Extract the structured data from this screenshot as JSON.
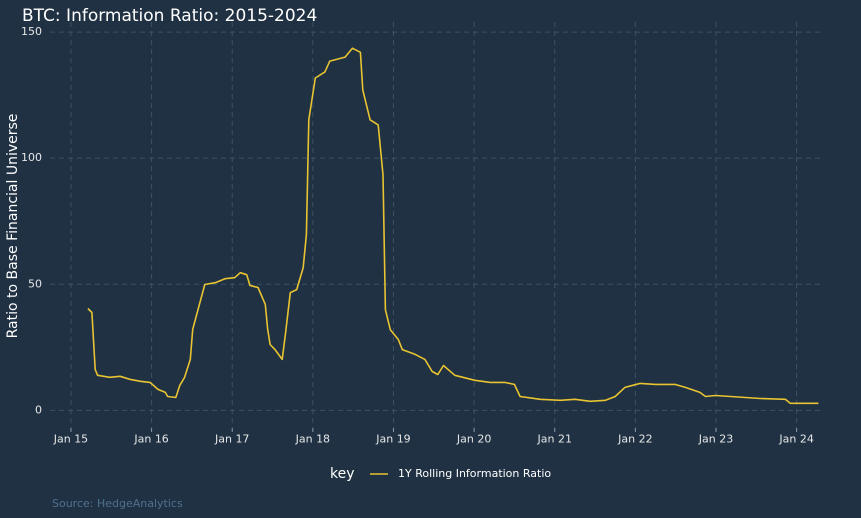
{
  "chart_data": {
    "type": "line",
    "title": "BTC: Information Ratio: 2015-2024",
    "y_label": "Ratio to Base Financial Universe",
    "legend_title": "key",
    "source": "Source: HedgeAnalytics",
    "grid": true,
    "legend": "bottom",
    "xlim": [
      2014.74,
      2024.29
    ],
    "ylim": [
      -7,
      154
    ],
    "xticks": [
      {
        "value": 2015,
        "label": "Jan 15"
      },
      {
        "value": 2016,
        "label": "Jan 16"
      },
      {
        "value": 2017,
        "label": "Jan 17"
      },
      {
        "value": 2018,
        "label": "Jan 18"
      },
      {
        "value": 2019,
        "label": "Jan 19"
      },
      {
        "value": 2020,
        "label": "Jan 20"
      },
      {
        "value": 2021,
        "label": "Jan 21"
      },
      {
        "value": 2022,
        "label": "Jan 22"
      },
      {
        "value": 2023,
        "label": "Jan 23"
      },
      {
        "value": 2024,
        "label": "Jan 24"
      }
    ],
    "yticks": [
      0,
      50,
      100,
      150
    ],
    "x": [
      2015.21,
      2015.26,
      2015.3,
      2015.33,
      2015.48,
      2015.61,
      2015.73,
      2015.86,
      2015.98,
      2016.08,
      2016.17,
      2016.2,
      2016.3,
      2016.35,
      2016.41,
      2016.48,
      2016.51,
      2016.56,
      2016.66,
      2016.79,
      2016.91,
      2017.03,
      2017.1,
      2017.18,
      2017.22,
      2017.32,
      2017.41,
      2017.44,
      2017.47,
      2017.53,
      2017.62,
      2017.66,
      2017.72,
      2017.8,
      2017.88,
      2017.92,
      2017.95,
      2018.03,
      2018.15,
      2018.21,
      2018.4,
      2018.49,
      2018.59,
      2018.62,
      2018.71,
      2018.81,
      2018.87,
      2018.9,
      2018.96,
      2019.06,
      2019.11,
      2019.27,
      2019.39,
      2019.48,
      2019.55,
      2019.62,
      2019.76,
      2020.01,
      2020.2,
      2020.38,
      2020.5,
      2020.57,
      2020.82,
      2021.07,
      2021.25,
      2021.44,
      2021.63,
      2021.75,
      2021.87,
      2022.06,
      2022.25,
      2022.49,
      2022.62,
      2022.8,
      2022.87,
      2022.99,
      2023.18,
      2023.55,
      2023.86,
      2023.92,
      2024.27
    ],
    "series": [
      {
        "name": "1Y Rolling Information Ratio",
        "color": "#e8c332",
        "values": [
          40.4,
          38.8,
          16.2,
          13.9,
          13.1,
          13.5,
          12.3,
          11.5,
          11.1,
          8.3,
          7.1,
          5.5,
          5.1,
          9.9,
          13.1,
          20.2,
          32.1,
          38.0,
          49.9,
          50.6,
          52.2,
          52.6,
          54.6,
          53.8,
          49.5,
          48.7,
          42.0,
          32.1,
          26.1,
          24.1,
          20.2,
          30.1,
          46.7,
          47.9,
          56.6,
          69.7,
          115.2,
          131.8,
          134.2,
          138.5,
          140.1,
          143.6,
          142.0,
          127.0,
          115.2,
          113.2,
          93.4,
          39.9,
          32.0,
          28.1,
          24.1,
          22.2,
          20.2,
          15.4,
          14.2,
          17.8,
          13.9,
          11.9,
          11.1,
          11.1,
          10.3,
          5.5,
          4.4,
          4.0,
          4.4,
          3.6,
          4.0,
          5.5,
          9.1,
          10.7,
          10.3,
          10.3,
          9.1,
          7.1,
          5.5,
          5.9,
          5.5,
          4.7,
          4.4,
          2.8,
          2.8
        ]
      }
    ]
  }
}
